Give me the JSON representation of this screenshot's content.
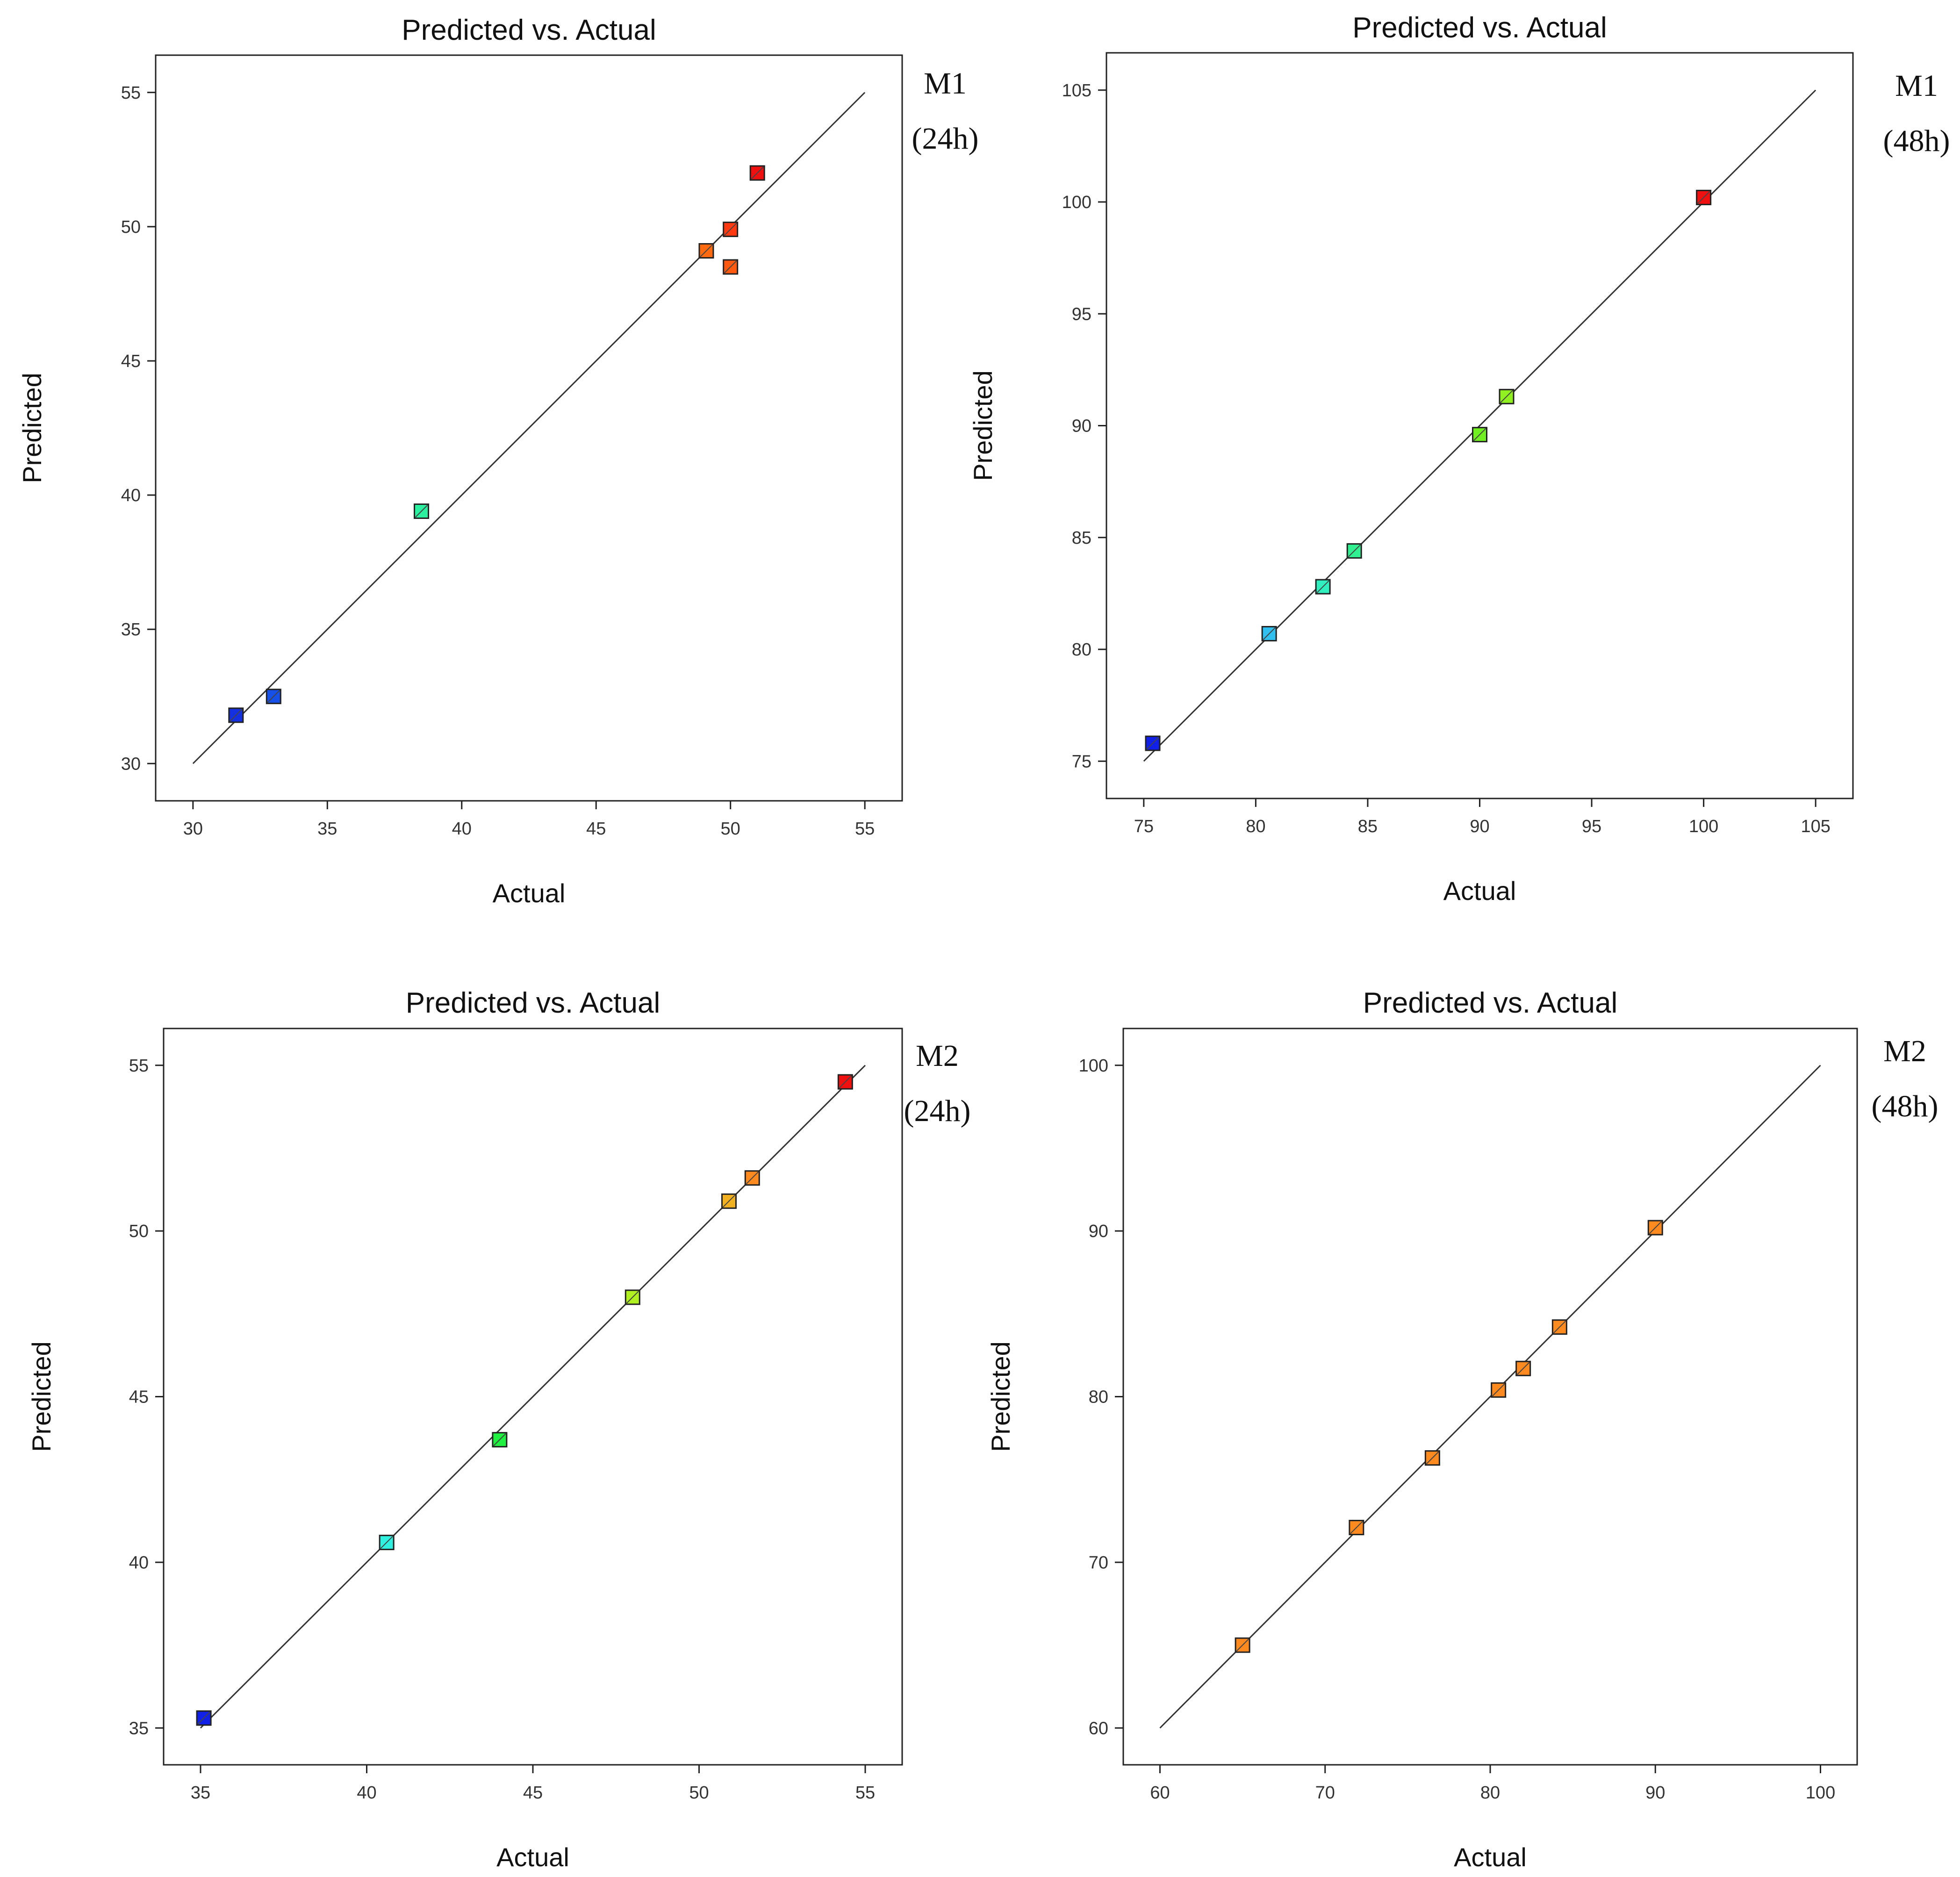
{
  "chart_data": [
    {
      "type": "scatter",
      "title": "Predicted vs. Actual",
      "xlabel": "Actual",
      "ylabel": "Predicted",
      "model_label": "M1",
      "time_label": "(24h)",
      "xlim": [
        30,
        55
      ],
      "ylim": [
        30,
        55
      ],
      "xticks": [
        30,
        35,
        40,
        45,
        50,
        55
      ],
      "yticks": [
        30,
        35,
        40,
        45,
        50,
        55
      ],
      "fit_line": [
        [
          30,
          30
        ],
        [
          55,
          55
        ]
      ],
      "points": [
        {
          "x": 31.6,
          "y": 31.8,
          "color": "#1430e0"
        },
        {
          "x": 33.0,
          "y": 32.5,
          "color": "#1750e8"
        },
        {
          "x": 38.5,
          "y": 39.4,
          "color": "#2bf0a0"
        },
        {
          "x": 49.1,
          "y": 49.1,
          "color": "#ff6a10"
        },
        {
          "x": 50.0,
          "y": 49.9,
          "color": "#ff3a10"
        },
        {
          "x": 50.0,
          "y": 48.5,
          "color": "#ff5a10"
        },
        {
          "x": 51.0,
          "y": 52.0,
          "color": "#f01010"
        }
      ]
    },
    {
      "type": "scatter",
      "title": "Predicted vs. Actual",
      "xlabel": "Actual",
      "ylabel": "Predicted",
      "model_label": "M1",
      "time_label": "(48h)",
      "xlim": [
        75,
        105
      ],
      "ylim": [
        75,
        105
      ],
      "xticks": [
        75,
        80,
        85,
        90,
        95,
        100,
        105
      ],
      "yticks": [
        75,
        80,
        85,
        90,
        95,
        100,
        105
      ],
      "fit_line": [
        [
          75,
          75
        ],
        [
          105,
          105
        ]
      ],
      "points": [
        {
          "x": 75.4,
          "y": 75.8,
          "color": "#1020e8"
        },
        {
          "x": 80.6,
          "y": 80.7,
          "color": "#30c0f0"
        },
        {
          "x": 83.0,
          "y": 82.8,
          "color": "#30f0c0"
        },
        {
          "x": 84.4,
          "y": 84.4,
          "color": "#30f090"
        },
        {
          "x": 90.0,
          "y": 89.6,
          "color": "#70f020"
        },
        {
          "x": 91.2,
          "y": 91.3,
          "color": "#90f020"
        },
        {
          "x": 100.0,
          "y": 100.2,
          "color": "#f01010"
        }
      ]
    },
    {
      "type": "scatter",
      "title": "Predicted vs. Actual",
      "xlabel": "Actual",
      "ylabel": "Predicted",
      "model_label": "M2",
      "time_label": "(24h)",
      "xlim": [
        35,
        55
      ],
      "ylim": [
        35,
        55
      ],
      "xticks": [
        35,
        40,
        45,
        50,
        55
      ],
      "yticks": [
        35,
        40,
        45,
        50,
        55
      ],
      "fit_line": [
        [
          35,
          35
        ],
        [
          55,
          55
        ]
      ],
      "points": [
        {
          "x": 35.1,
          "y": 35.3,
          "color": "#1020e8"
        },
        {
          "x": 40.6,
          "y": 40.6,
          "color": "#30f0e0"
        },
        {
          "x": 44.0,
          "y": 43.7,
          "color": "#20f040"
        },
        {
          "x": 48.0,
          "y": 48.0,
          "color": "#b0f020"
        },
        {
          "x": 50.9,
          "y": 50.9,
          "color": "#f0b020"
        },
        {
          "x": 51.6,
          "y": 51.6,
          "color": "#ff8a20"
        },
        {
          "x": 54.4,
          "y": 54.5,
          "color": "#f01010"
        }
      ]
    },
    {
      "type": "scatter",
      "title": "Predicted vs. Actual",
      "xlabel": "Actual",
      "ylabel": "Predicted",
      "model_label": "M2",
      "time_label": "(48h)",
      "xlim": [
        60,
        100
      ],
      "ylim": [
        60,
        100
      ],
      "xticks": [
        60,
        70,
        80,
        90,
        100
      ],
      "yticks": [
        60,
        70,
        80,
        90,
        100
      ],
      "fit_line": [
        [
          60,
          60
        ],
        [
          100,
          100
        ]
      ],
      "points": [
        {
          "x": 65.0,
          "y": 65.0,
          "color": "#ff8a20"
        },
        {
          "x": 71.9,
          "y": 72.1,
          "color": "#ff8a20"
        },
        {
          "x": 76.5,
          "y": 76.3,
          "color": "#ff8a20"
        },
        {
          "x": 80.5,
          "y": 80.4,
          "color": "#ff8a20"
        },
        {
          "x": 82.0,
          "y": 81.7,
          "color": "#ff8a20"
        },
        {
          "x": 84.2,
          "y": 84.2,
          "color": "#ff8a20"
        },
        {
          "x": 90.0,
          "y": 90.2,
          "color": "#ff8a20"
        }
      ]
    }
  ]
}
